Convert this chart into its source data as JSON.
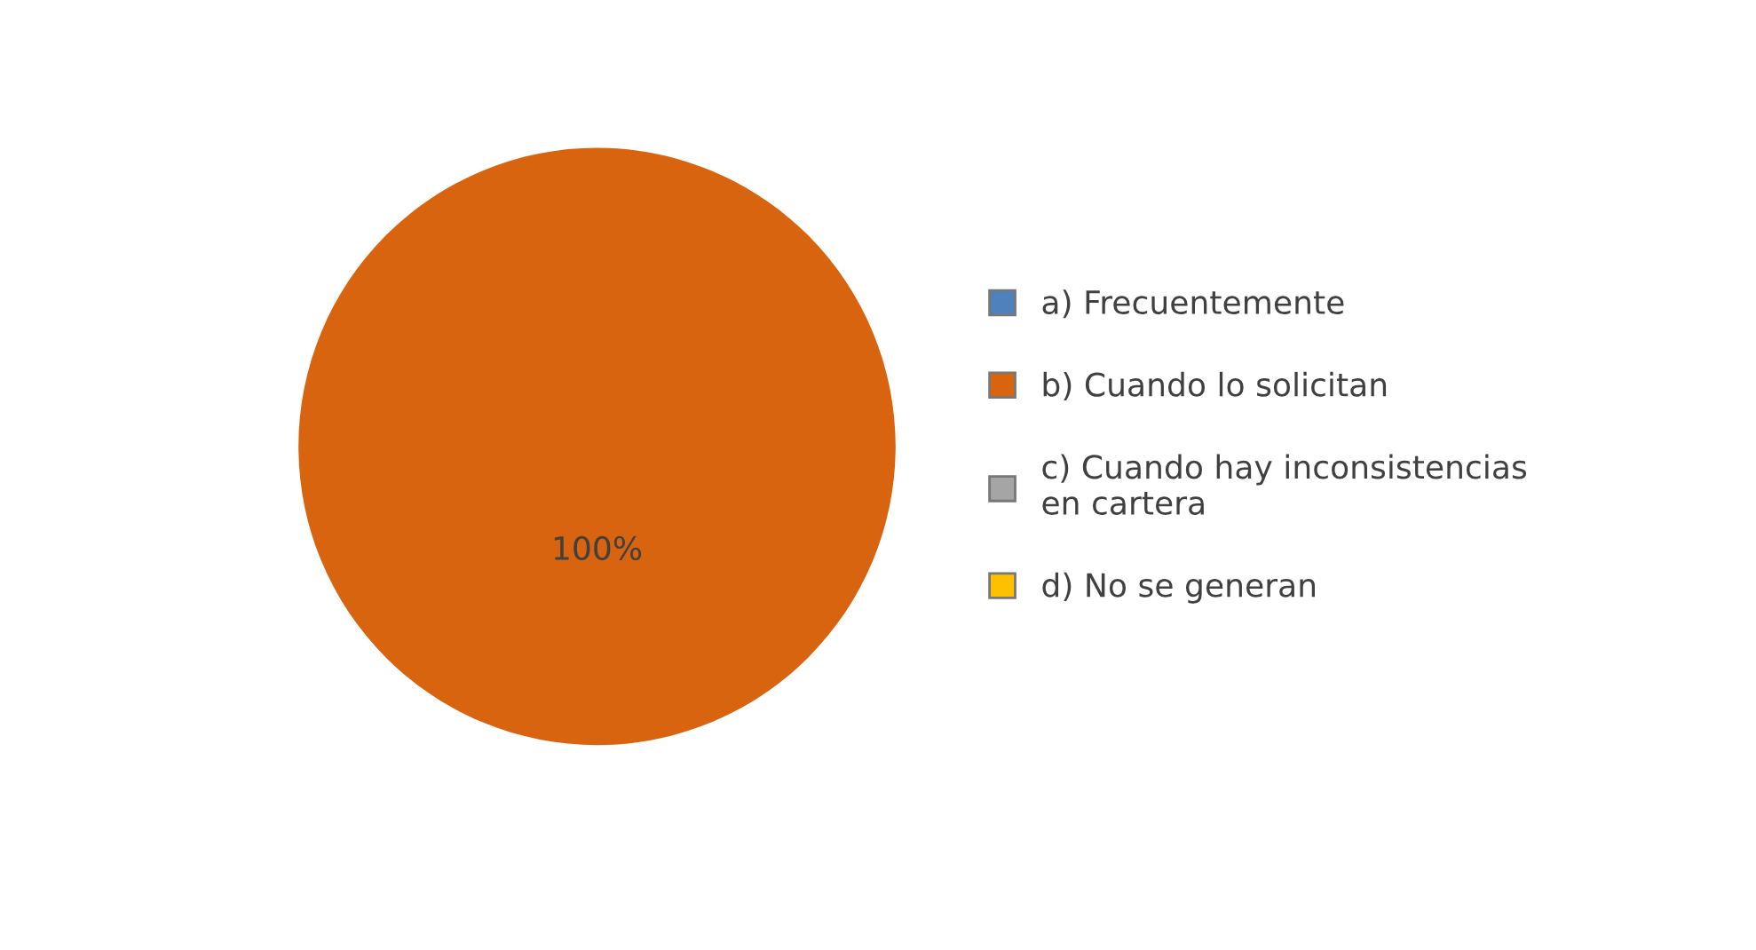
{
  "chart_data": {
    "type": "pie",
    "categories": [
      "a) Frecuentemente",
      "b) Cuando lo solicitan",
      "c) Cuando hay inconsistencias en cartera",
      "d) No se generan"
    ],
    "values": [
      0,
      100,
      0,
      0
    ],
    "colors": [
      "#4f81bd",
      "#d9640f",
      "#a5a5a5",
      "#ffc000"
    ],
    "value_labels": [
      null,
      "100%",
      null,
      null
    ],
    "legend": "right"
  }
}
